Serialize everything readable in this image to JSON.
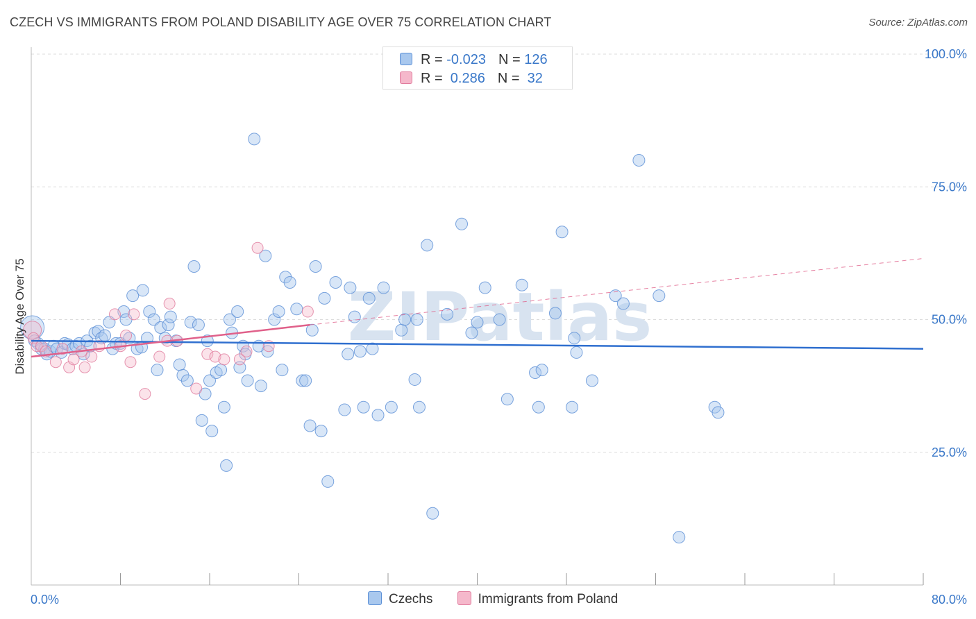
{
  "title": "CZECH VS IMMIGRANTS FROM POLAND DISABILITY AGE OVER 75 CORRELATION CHART",
  "source": "Source: ZipAtlas.com",
  "watermark": "ZIPatlas",
  "legend": {
    "rows": [
      {
        "r_label": "R = ",
        "r_value": "-0.023",
        "n_label": "N = ",
        "n_value": "126"
      },
      {
        "r_label": "R = ",
        "r_value": " 0.286",
        "n_label": "N = ",
        "n_value": " 32"
      }
    ]
  },
  "colors": {
    "czechs_fill": "#a9c8ee",
    "czechs_stroke": "#5b8fd6",
    "czechs_line": "#2f6fcf",
    "poland_fill": "#f5b8cb",
    "poland_stroke": "#e07a9c",
    "poland_line": "#e0608a",
    "axis_label": "#3a78c9",
    "grid": "#dcdcdc"
  },
  "chart_data": {
    "type": "scatter",
    "title": "CZECH VS IMMIGRANTS FROM POLAND DISABILITY AGE OVER 75 CORRELATION CHART",
    "xlabel": "",
    "ylabel": "Disability Age Over 75",
    "xlim": [
      0,
      80
    ],
    "ylim": [
      0,
      100
    ],
    "x_tick_labels": [
      "0.0%",
      "80.0%"
    ],
    "y_ticks": [
      25,
      50,
      75,
      100
    ],
    "y_tick_labels": [
      "25.0%",
      "50.0%",
      "75.0%",
      "100.0%"
    ],
    "grid": true,
    "legend_position": "bottom-center",
    "series": [
      {
        "name": "Czechs",
        "r": -0.023,
        "n": 126,
        "trend": {
          "x": [
            0,
            80
          ],
          "y": [
            46.0,
            44.5
          ]
        },
        "points": [
          [
            0.1,
            48.5
          ],
          [
            0.3,
            46
          ],
          [
            0.6,
            45.5
          ],
          [
            0.9,
            44.5
          ],
          [
            1.2,
            44.5
          ],
          [
            1.4,
            43.5
          ],
          [
            1.7,
            44
          ],
          [
            2,
            45
          ],
          [
            2.3,
            44.5
          ],
          [
            2.7,
            43.8
          ],
          [
            3,
            45.5
          ],
          [
            3.3,
            45.3
          ],
          [
            3.7,
            44.5
          ],
          [
            4,
            45
          ],
          [
            4.3,
            45.5
          ],
          [
            4.7,
            43.5
          ],
          [
            5,
            46
          ],
          [
            5.3,
            45
          ],
          [
            5.7,
            47.5
          ],
          [
            6,
            47.8
          ],
          [
            6.3,
            46.5
          ],
          [
            6.6,
            47
          ],
          [
            7,
            49.5
          ],
          [
            7.3,
            44.5
          ],
          [
            7.6,
            45.5
          ],
          [
            8,
            45.5
          ],
          [
            8.3,
            51.5
          ],
          [
            8.5,
            50
          ],
          [
            8.8,
            46.5
          ],
          [
            9.1,
            54.5
          ],
          [
            9.5,
            44.5
          ],
          [
            9.9,
            44.8
          ],
          [
            10,
            55.5
          ],
          [
            10.4,
            46.5
          ],
          [
            10.6,
            51.5
          ],
          [
            11,
            50
          ],
          [
            11.3,
            40.5
          ],
          [
            11.6,
            48.5
          ],
          [
            12,
            46.5
          ],
          [
            12.3,
            49
          ],
          [
            12.5,
            50.5
          ],
          [
            13,
            46
          ],
          [
            13.3,
            41.5
          ],
          [
            13.6,
            39.5
          ],
          [
            14,
            38.5
          ],
          [
            14.3,
            49.5
          ],
          [
            14.6,
            60
          ],
          [
            15,
            49
          ],
          [
            15.3,
            31
          ],
          [
            15.6,
            36
          ],
          [
            15.8,
            46
          ],
          [
            16,
            38.5
          ],
          [
            16.2,
            29
          ],
          [
            16.6,
            40
          ],
          [
            17,
            40.5
          ],
          [
            17.3,
            33.5
          ],
          [
            17.5,
            22.5
          ],
          [
            17.8,
            50
          ],
          [
            18,
            47.5
          ],
          [
            18.5,
            51.5
          ],
          [
            18.7,
            41
          ],
          [
            19,
            45
          ],
          [
            19.2,
            43.5
          ],
          [
            19.4,
            38.5
          ],
          [
            20,
            84
          ],
          [
            20.4,
            45
          ],
          [
            20.6,
            37.5
          ],
          [
            21,
            62
          ],
          [
            21.2,
            44
          ],
          [
            21.8,
            50
          ],
          [
            22.2,
            51.5
          ],
          [
            22.5,
            40.5
          ],
          [
            22.8,
            58
          ],
          [
            23.2,
            57
          ],
          [
            23.8,
            52
          ],
          [
            24.3,
            38.5
          ],
          [
            24.6,
            38.5
          ],
          [
            25,
            30
          ],
          [
            25.2,
            48
          ],
          [
            25.5,
            60
          ],
          [
            26,
            29
          ],
          [
            26.3,
            54
          ],
          [
            26.6,
            19.5
          ],
          [
            27.3,
            57
          ],
          [
            28.1,
            33
          ],
          [
            28.4,
            43.5
          ],
          [
            28.6,
            56
          ],
          [
            29,
            50.5
          ],
          [
            29.5,
            44
          ],
          [
            29.8,
            33.5
          ],
          [
            30.3,
            54
          ],
          [
            30.6,
            44.5
          ],
          [
            31.1,
            32
          ],
          [
            31.6,
            56
          ],
          [
            32.3,
            33.5
          ],
          [
            33.2,
            48
          ],
          [
            33.5,
            50
          ],
          [
            34.4,
            38.7
          ],
          [
            34.6,
            50
          ],
          [
            34.8,
            33.5
          ],
          [
            35.5,
            64
          ],
          [
            36,
            13.5
          ],
          [
            37.3,
            51
          ],
          [
            38.6,
            68
          ],
          [
            39.5,
            47.5
          ],
          [
            40,
            49.5
          ],
          [
            40.7,
            56
          ],
          [
            42,
            50
          ],
          [
            42.7,
            35
          ],
          [
            44,
            56.5
          ],
          [
            45.2,
            40
          ],
          [
            45.5,
            33.5
          ],
          [
            45.8,
            40.5
          ],
          [
            47,
            51.2
          ],
          [
            47.6,
            66.5
          ],
          [
            48.5,
            33.5
          ],
          [
            48.7,
            46.5
          ],
          [
            48.9,
            43.8
          ],
          [
            50.3,
            38.5
          ],
          [
            52.4,
            54.5
          ],
          [
            53.1,
            53
          ],
          [
            54.5,
            80
          ],
          [
            56.3,
            54.5
          ],
          [
            58.1,
            9
          ],
          [
            61.3,
            33.5
          ],
          [
            61.6,
            32.5
          ]
        ]
      },
      {
        "name": "Immigrants from Poland",
        "r": 0.286,
        "n": 32,
        "trend": {
          "x": [
            0,
            25
          ],
          "y": [
            43.0,
            49.0
          ]
        },
        "trend_extension": {
          "x": [
            25,
            80
          ],
          "y": [
            49.0,
            61.5
          ]
        },
        "points": [
          [
            0.1,
            48
          ],
          [
            0.2,
            46.5
          ],
          [
            0.5,
            45
          ],
          [
            0.9,
            45
          ],
          [
            1.3,
            44
          ],
          [
            2.2,
            42
          ],
          [
            2.8,
            44.5
          ],
          [
            3.4,
            41
          ],
          [
            3.8,
            42.5
          ],
          [
            4.5,
            44
          ],
          [
            4.8,
            41
          ],
          [
            5.4,
            43
          ],
          [
            6.1,
            45
          ],
          [
            7.5,
            51
          ],
          [
            8,
            45
          ],
          [
            8.5,
            47
          ],
          [
            8.9,
            42
          ],
          [
            9.2,
            51
          ],
          [
            10.2,
            36
          ],
          [
            11.5,
            43
          ],
          [
            12.2,
            46
          ],
          [
            12.4,
            53
          ],
          [
            13.1,
            46
          ],
          [
            14.8,
            37
          ],
          [
            15.8,
            43.5
          ],
          [
            16.5,
            43
          ],
          [
            17.3,
            42.5
          ],
          [
            18.7,
            42.5
          ],
          [
            19.3,
            44
          ],
          [
            20.3,
            63.5
          ],
          [
            21.3,
            45
          ],
          [
            24.8,
            51.5
          ]
        ]
      }
    ]
  },
  "bottom_legend": [
    {
      "label": "Czechs"
    },
    {
      "label": "Immigrants from Poland"
    }
  ]
}
